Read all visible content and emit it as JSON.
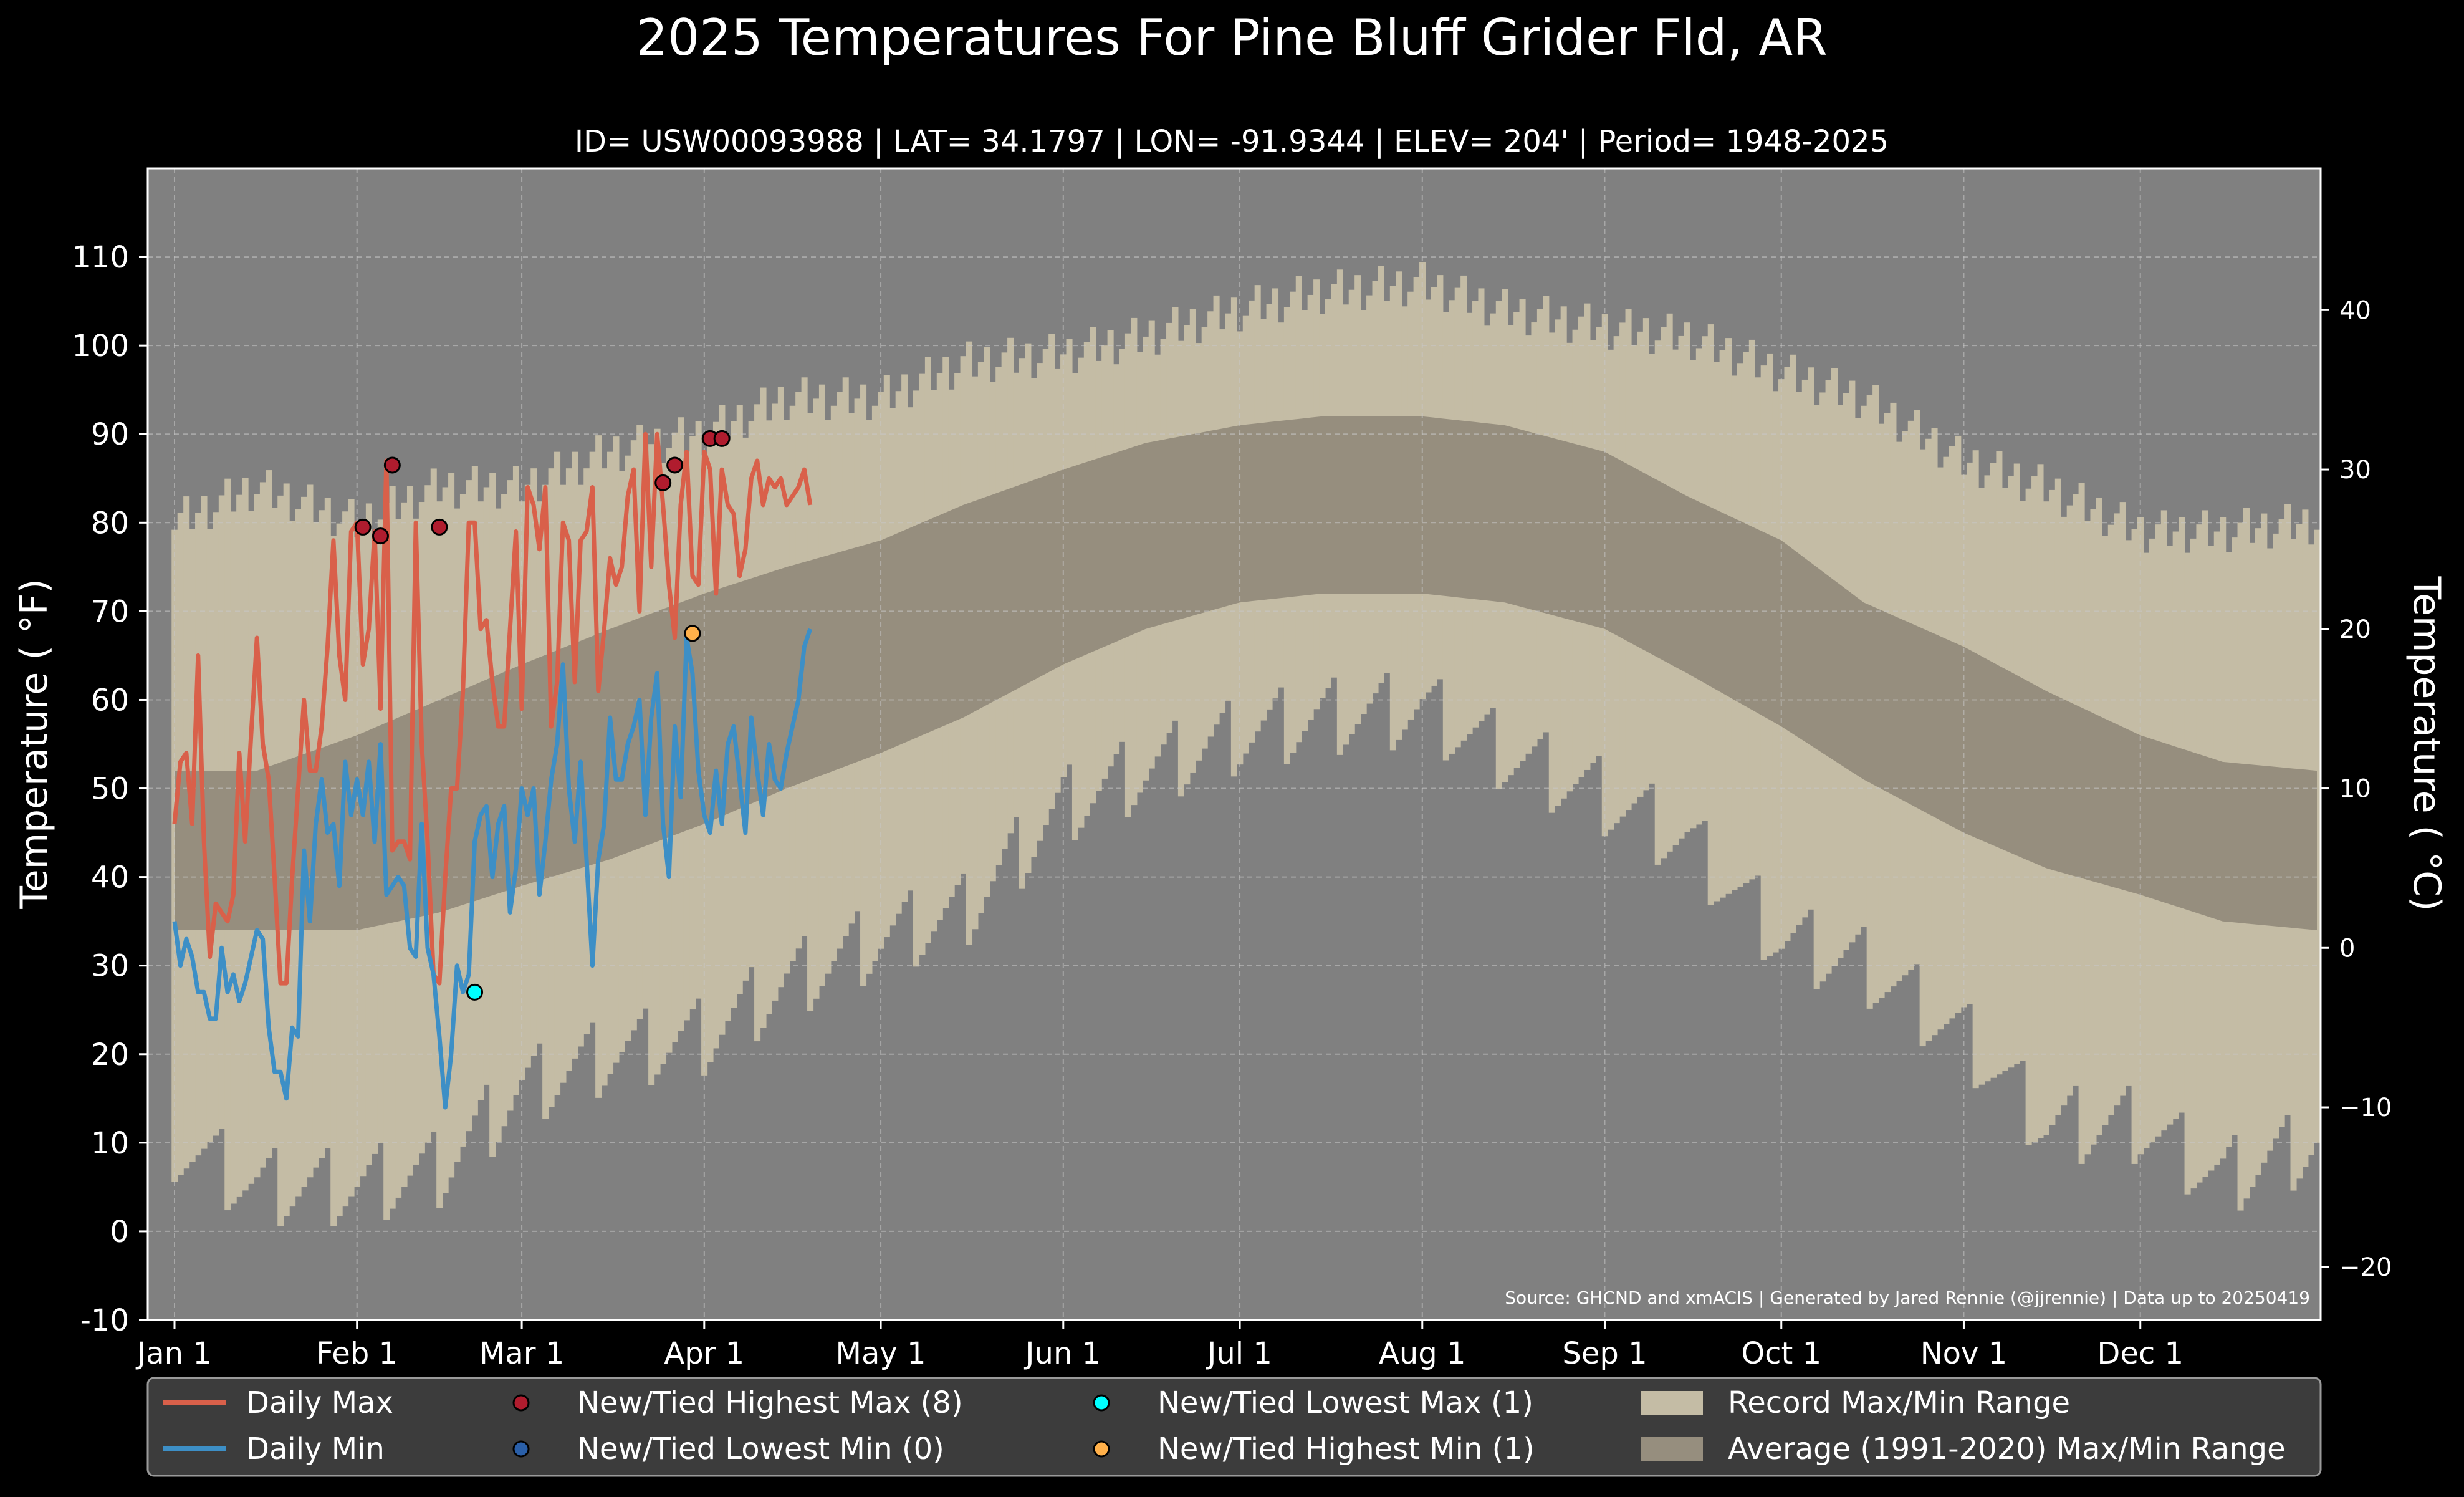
{
  "colors": {
    "background": "#000000",
    "plot_bg": "#808080",
    "record_band": "#c4bca5",
    "normal_band": "#968e7e",
    "daily_max": "#d9604a",
    "daily_min": "#3d8fc6",
    "record_high_max": "#b01c2e",
    "record_low_min": "#2a5fa8",
    "record_low_max": "#00ffff",
    "record_high_min": "#ffb04a",
    "legend_bg": "#3c3c3c",
    "text": "#ffffff"
  },
  "chart_data": {
    "type": "line",
    "title": "2025 Temperatures For Pine Bluff Grider Fld, AR",
    "subtitle": "ID= USW00093988 | LAT= 34.1797 | LON= -91.9344 | ELEV= 204' | Period= 1948-2025",
    "ylabel": "Temperature ( °F)",
    "ylabel_right": "Temperature ( °C)",
    "source": "Source: GHCND and xmACIS | Generated by Jared Rennie (@jjrennie) | Data up to 20250419",
    "ylim": [
      -10,
      120
    ],
    "yticks": [
      -10,
      0,
      10,
      20,
      30,
      40,
      50,
      60,
      70,
      80,
      90,
      100,
      110
    ],
    "yticks_right": [
      -20,
      -10,
      0,
      10,
      20,
      30,
      40
    ],
    "xlim": [
      "2025-01-01",
      "2025-12-31"
    ],
    "xticks": [
      {
        "label": "Jan 1",
        "day": 1
      },
      {
        "label": "Feb 1",
        "day": 32
      },
      {
        "label": "Mar 1",
        "day": 60
      },
      {
        "label": "Apr 1",
        "day": 91
      },
      {
        "label": "May 1",
        "day": 121
      },
      {
        "label": "Jun 1",
        "day": 152
      },
      {
        "label": "Jul 1",
        "day": 182
      },
      {
        "label": "Aug 1",
        "day": 213
      },
      {
        "label": "Sep 1",
        "day": 244
      },
      {
        "label": "Oct 1",
        "day": 274
      },
      {
        "label": "Nov 1",
        "day": 305
      },
      {
        "label": "Dec 1",
        "day": 335
      }
    ],
    "grid": true,
    "legend_position": "bottom",
    "record_max_range": {
      "day_of_year": [
        1,
        15,
        32,
        46,
        60,
        75,
        91,
        105,
        121,
        135,
        152,
        166,
        182,
        196,
        213,
        227,
        244,
        258,
        274,
        288,
        305,
        319,
        335,
        349,
        365
      ],
      "high": [
        80,
        84,
        80,
        84,
        84,
        88,
        90,
        94,
        94,
        98,
        99,
        101,
        104,
        106,
        107,
        104,
        102,
        101,
        97,
        94,
        87,
        84,
        79,
        79,
        80
      ],
      "low": [
        10,
        5,
        5,
        7,
        16,
        20,
        22,
        28,
        33,
        36,
        48,
        52,
        56,
        58,
        59,
        54,
        49,
        44,
        33,
        30,
        22,
        12,
        12,
        6,
        10
      ]
    },
    "normal_max_range": {
      "day_of_year": [
        1,
        15,
        32,
        46,
        60,
        75,
        91,
        105,
        121,
        135,
        152,
        166,
        182,
        196,
        213,
        227,
        244,
        258,
        274,
        288,
        305,
        319,
        335,
        349,
        365
      ],
      "high": [
        52,
        52,
        56,
        60,
        64,
        68,
        72,
        75,
        78,
        82,
        86,
        89,
        91,
        92,
        92,
        91,
        88,
        83,
        78,
        71,
        66,
        61,
        56,
        53,
        52
      ],
      "low": [
        34,
        34,
        34,
        36,
        39,
        42,
        46,
        50,
        54,
        58,
        64,
        68,
        71,
        72,
        72,
        71,
        68,
        63,
        57,
        51,
        45,
        41,
        38,
        35,
        34
      ]
    },
    "series": [
      {
        "name": "Daily Max",
        "day_of_year": [
          1,
          2,
          3,
          4,
          5,
          6,
          7,
          8,
          9,
          10,
          11,
          12,
          13,
          14,
          15,
          16,
          17,
          18,
          19,
          20,
          21,
          22,
          23,
          24,
          25,
          26,
          27,
          28,
          29,
          30,
          31,
          32,
          33,
          34,
          35,
          36,
          37,
          38,
          39,
          40,
          41,
          42,
          43,
          44,
          45,
          46,
          47,
          48,
          49,
          50,
          51,
          52,
          53,
          54,
          55,
          56,
          57,
          58,
          59,
          60,
          61,
          62,
          63,
          64,
          65,
          66,
          67,
          68,
          69,
          70,
          71,
          72,
          73,
          74,
          75,
          76,
          77,
          78,
          79,
          80,
          81,
          82,
          83,
          84,
          85,
          86,
          87,
          88,
          89,
          90,
          91,
          92,
          93,
          94,
          95,
          96,
          97,
          98,
          99,
          100,
          101,
          102,
          103,
          104,
          105,
          106,
          107,
          108,
          109
        ],
        "values": [
          46,
          53,
          54,
          46,
          65,
          44,
          31,
          37,
          36,
          35,
          38,
          54,
          44,
          56,
          67,
          55,
          51,
          40,
          28,
          28,
          40,
          50,
          60,
          52,
          52,
          57,
          66,
          78,
          65,
          60,
          79,
          80,
          64,
          68,
          79,
          59,
          87,
          43,
          44,
          44,
          42,
          80,
          55,
          44,
          29,
          28,
          40,
          50,
          50,
          61,
          80,
          80,
          68,
          69,
          62,
          57,
          57,
          68,
          79,
          59,
          84,
          82,
          77,
          84,
          57,
          62,
          80,
          78,
          62,
          78,
          79,
          84,
          61,
          68,
          76,
          73,
          75,
          83,
          86,
          70,
          90,
          75,
          90,
          82,
          73,
          67,
          82,
          88,
          74,
          73,
          88,
          86,
          72,
          86,
          82,
          81,
          74,
          77,
          85,
          87,
          82,
          85,
          84,
          85,
          82,
          83,
          84,
          86,
          82
        ]
      },
      {
        "name": "Daily Min",
        "day_of_year": [
          1,
          2,
          3,
          4,
          5,
          6,
          7,
          8,
          9,
          10,
          11,
          12,
          13,
          14,
          15,
          16,
          17,
          18,
          19,
          20,
          21,
          22,
          23,
          24,
          25,
          26,
          27,
          28,
          29,
          30,
          31,
          32,
          33,
          34,
          35,
          36,
          37,
          38,
          39,
          40,
          41,
          42,
          43,
          44,
          45,
          46,
          47,
          48,
          49,
          50,
          51,
          52,
          53,
          54,
          55,
          56,
          57,
          58,
          59,
          60,
          61,
          62,
          63,
          64,
          65,
          66,
          67,
          68,
          69,
          70,
          71,
          72,
          73,
          74,
          75,
          76,
          77,
          78,
          79,
          80,
          81,
          82,
          83,
          84,
          85,
          86,
          87,
          88,
          89,
          90,
          91,
          92,
          93,
          94,
          95,
          96,
          97,
          98,
          99,
          100,
          101,
          102,
          103,
          104,
          105,
          106,
          107,
          108,
          109
        ],
        "values": [
          35,
          30,
          33,
          31,
          27,
          27,
          24,
          24,
          32,
          27,
          29,
          26,
          28,
          31,
          34,
          33,
          23,
          18,
          18,
          15,
          23,
          22,
          43,
          35,
          46,
          51,
          45,
          46,
          39,
          53,
          47,
          51,
          47,
          53,
          44,
          55,
          38,
          39,
          40,
          39,
          32,
          31,
          46,
          32,
          29,
          22,
          14,
          20,
          30,
          27,
          29,
          44,
          47,
          48,
          40,
          46,
          48,
          36,
          41,
          50,
          47,
          50,
          38,
          44,
          51,
          55,
          64,
          50,
          44,
          53,
          42,
          30,
          42,
          46,
          58,
          51,
          51,
          55,
          57,
          60,
          47,
          58,
          63,
          46,
          40,
          57,
          49,
          67,
          63,
          52,
          47,
          45,
          52,
          46,
          55,
          57,
          51,
          45,
          58,
          52,
          47,
          55,
          51,
          50,
          54,
          57,
          60,
          66,
          68
        ]
      }
    ],
    "markers": [
      {
        "name": "New/Tied Highest Max (8)",
        "day_of_year": [
          33,
          36,
          38,
          46,
          84,
          86,
          92,
          94
        ],
        "values": [
          79.5,
          78.5,
          86.5,
          79.5,
          84.5,
          86.5,
          89.5,
          89.5
        ]
      },
      {
        "name": "New/Tied Lowest Min (0)",
        "day_of_year": [],
        "values": []
      },
      {
        "name": "New/Tied Lowest Max (1)",
        "day_of_year": [
          52
        ],
        "values": [
          27
        ]
      },
      {
        "name": "New/Tied Highest Min (1)",
        "day_of_year": [
          89
        ],
        "values": [
          67.5
        ]
      }
    ],
    "bands": [
      {
        "name": "Record Max/Min Range"
      },
      {
        "name": "Average (1991-2020) Max/Min Range"
      }
    ]
  }
}
